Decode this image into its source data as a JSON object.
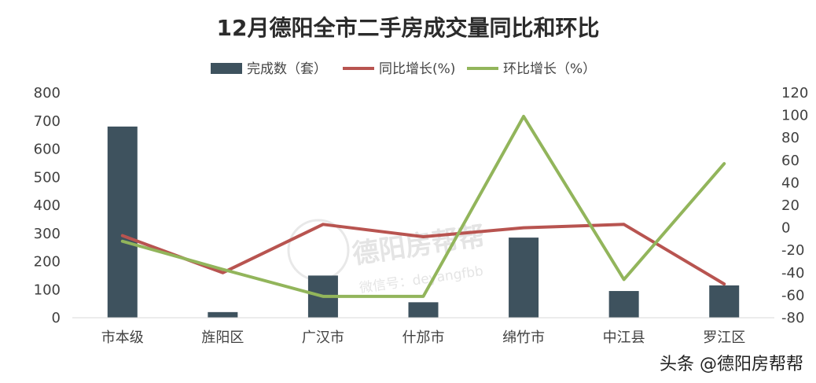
{
  "chart_data": {
    "type": "bar",
    "title": "12月德阳全市二手房成交量同比和环比",
    "categories": [
      "市本级",
      "旌阳区",
      "广汉市",
      "什邡市",
      "绵竹市",
      "中江县",
      "罗江区"
    ],
    "bar_series": {
      "name": "完成数（套）",
      "axis": "left",
      "values": [
        680,
        20,
        150,
        55,
        285,
        95,
        115
      ]
    },
    "line_series": [
      {
        "name": "同比增长(%)",
        "axis": "right",
        "color": "#b85450",
        "values": [
          -7,
          -40,
          3,
          -8,
          0,
          3,
          -50
        ]
      },
      {
        "name": "环比增长（%）",
        "axis": "right",
        "color": "#92b55b",
        "values": [
          -12,
          -37,
          -61,
          -61,
          99,
          -46,
          57
        ]
      }
    ],
    "left_axis": {
      "ylim": [
        0,
        800
      ],
      "ticks": [
        0,
        100,
        200,
        300,
        400,
        500,
        600,
        700,
        800
      ]
    },
    "right_axis": {
      "ylim": [
        -80,
        120
      ],
      "ticks": [
        -80,
        -60,
        -40,
        -20,
        0,
        20,
        40,
        60,
        80,
        100,
        120
      ]
    },
    "bar_color": "#3e525e",
    "legend_position": "top-center",
    "grid": false
  },
  "watermark": {
    "name": "德阳房帮帮",
    "wechat": "微信号：deyangfbb"
  },
  "credit": "头条 @德阳房帮帮"
}
